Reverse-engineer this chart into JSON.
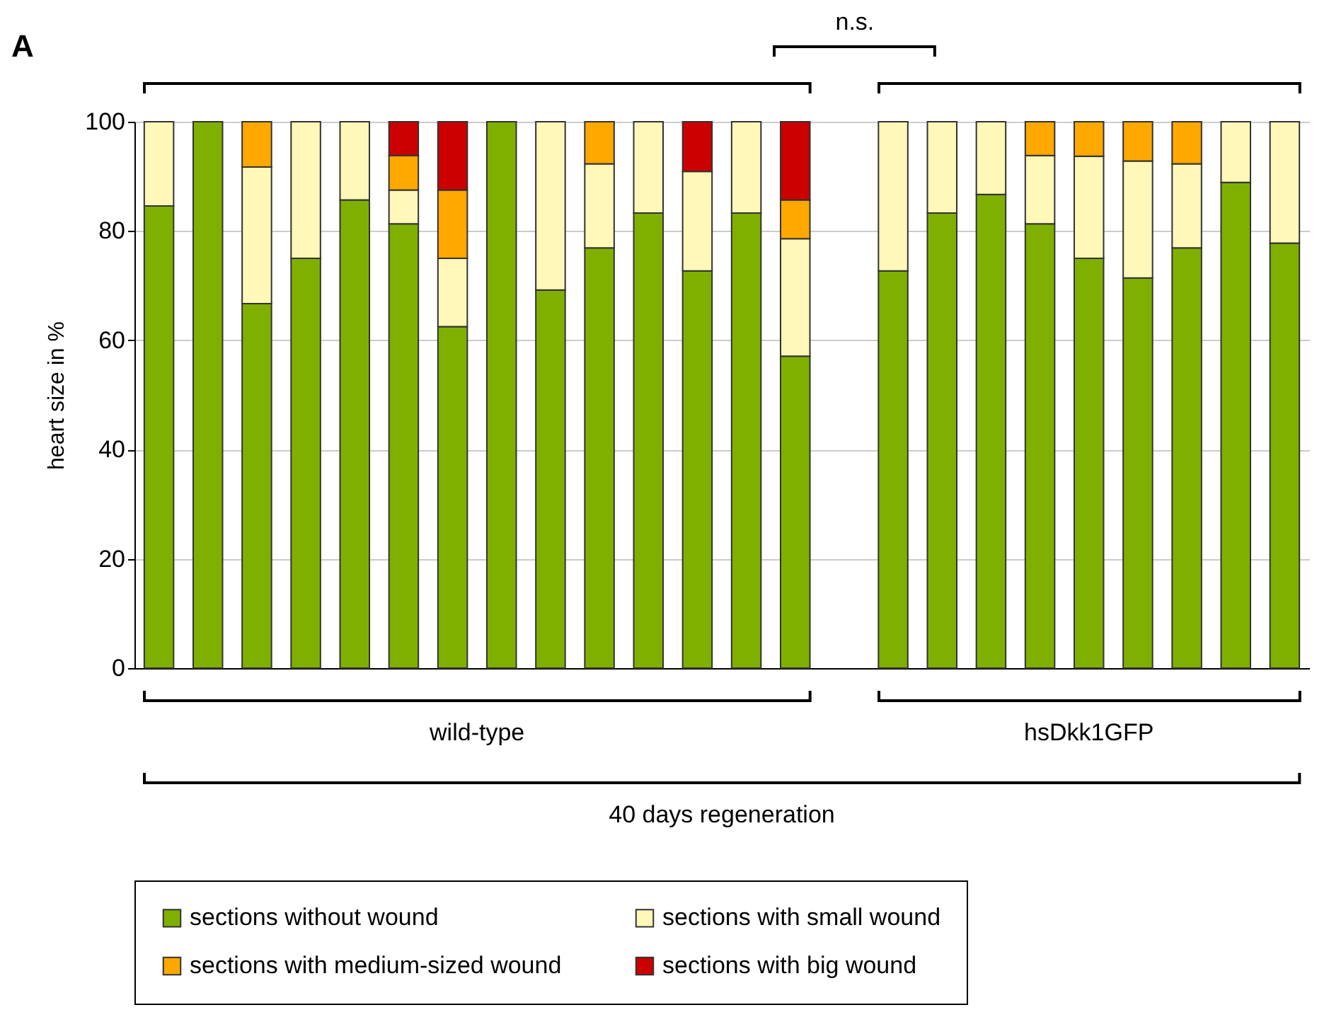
{
  "chart_data": {
    "type": "bar",
    "stacked": true,
    "ylabel": "heart size in %",
    "categories": [
      null,
      null,
      null,
      null,
      null,
      null,
      null,
      null,
      null,
      null,
      null,
      null,
      null,
      null,
      null,
      null,
      null,
      null,
      null,
      null,
      null,
      null,
      null,
      null
    ],
    "series": [
      {
        "name": "sections without wound",
        "color": "#7fb000",
        "values": [
          84.6,
          100,
          66.7,
          75,
          85.7,
          81.3,
          62.5,
          100,
          69.2,
          76.9,
          83.3,
          72.7,
          83.3,
          57.1,
          null,
          72.7,
          83.3,
          86.7,
          81.3,
          75,
          71.4,
          76.9,
          88.9,
          77.8
        ]
      },
      {
        "name": "sections with small wound",
        "color": "#fff8b8",
        "values": [
          15.4,
          null,
          25,
          25,
          14.3,
          6.2,
          12.5,
          null,
          30.8,
          15.4,
          16.7,
          18.2,
          16.7,
          21.5,
          null,
          27.3,
          16.7,
          13.3,
          12.5,
          18.7,
          21.4,
          15.4,
          11.1,
          22.2
        ]
      },
      {
        "name": "sections with medium-sized wound",
        "color": "#ffa800",
        "values": [
          null,
          null,
          8.3,
          null,
          null,
          6.3,
          12.5,
          null,
          null,
          7.7,
          null,
          null,
          null,
          7.1,
          null,
          null,
          null,
          null,
          6.2,
          6.3,
          7.2,
          7.7,
          null,
          null
        ]
      },
      {
        "name": "sections with big wound",
        "color": "#cc0000",
        "values": [
          null,
          null,
          null,
          null,
          null,
          6.2,
          12.5,
          null,
          null,
          null,
          null,
          9.1,
          null,
          14.3,
          null,
          null,
          null,
          null,
          null,
          null,
          null,
          null,
          null,
          null
        ]
      }
    ],
    "ylim": [
      0,
      100
    ],
    "yticks": [
      0,
      20,
      40,
      60,
      80,
      100
    ],
    "grid": "y",
    "tick_labels": "y",
    "legend": "bottom",
    "annotations": [
      "A",
      "n.s.",
      "wild-type",
      "hsDkk1GFP",
      "40 days regeneration"
    ]
  }
}
